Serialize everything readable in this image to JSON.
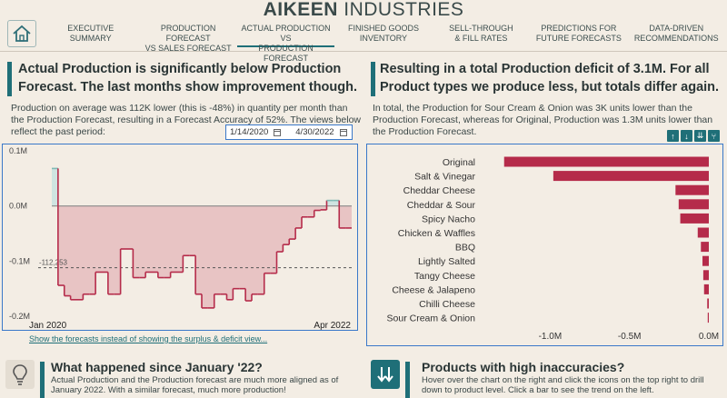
{
  "brand": {
    "bold": "AIKEEN",
    "rest": " INDUSTRIES"
  },
  "nav": [
    {
      "line1": "Executive",
      "line2": "Summary"
    },
    {
      "line1": "Production Forecast",
      "line2": "vs Sales Forecast"
    },
    {
      "line1": "Actual Production vs",
      "line2": "Production Forecast"
    },
    {
      "line1": "Finished Goods",
      "line2": "Inventory"
    },
    {
      "line1": "Sell-Through",
      "line2": "& Fill Rates"
    },
    {
      "line1": "Predictions for",
      "line2": "Future Forecasts"
    },
    {
      "line1": "Data-Driven",
      "line2": "Recommendations"
    }
  ],
  "left": {
    "title": "Actual Production is significantly below Production Forecast. The last months show improvement though.",
    "desc": "Production on average was 112K lower (this is -48%) in quantity per month than the Production Forecast, resulting in a Forecast Accuracy of 52%. The views below reflect the past period:",
    "date_start": "1/14/2020",
    "date_end": "4/30/2022",
    "link": "Show the forecasts instead of showing the surplus & deficit view..."
  },
  "right": {
    "title": "Resulting in a total Production deficit of 3.1M. For all Product types we produce less, but totals differ again.",
    "desc": "In total, the Production for Sour Cream & Onion was 3K units lower than the Production Forecast, whereas for Original, Production was 1.3M units lower than the Production Forecast."
  },
  "bottom_left": {
    "title": "What happened since January '22?",
    "desc": "Actual Production and the Production forecast are much more aligned as of January 2022. With a similar forecast, much more production!"
  },
  "bottom_right": {
    "title": "Products with high inaccuracies?",
    "desc": "Hover over the chart on the right and click the icons on the top right to drill down to product level. Click a bar to see the trend on the left."
  },
  "chart_data": [
    {
      "type": "area",
      "ylim": [
        -0.2,
        0.1
      ],
      "y_ticks": [
        "0.1M",
        "0.0M",
        "-0.1M",
        "-0.2M"
      ],
      "x_start_label": "Jan 2020",
      "x_end_label": "Apr 2022",
      "average_label": "-112,253",
      "average": -0.112,
      "values": [
        0.068,
        -0.144,
        -0.163,
        -0.17,
        -0.17,
        -0.16,
        -0.16,
        -0.12,
        -0.12,
        -0.16,
        -0.16,
        -0.078,
        -0.078,
        -0.13,
        -0.13,
        -0.12,
        -0.12,
        -0.13,
        -0.13,
        -0.12,
        -0.12,
        -0.09,
        -0.09,
        -0.16,
        -0.185,
        -0.185,
        -0.16,
        -0.16,
        -0.17,
        -0.15,
        -0.15,
        -0.172,
        -0.16,
        -0.16,
        -0.122,
        -0.122,
        -0.083,
        -0.07,
        -0.06,
        -0.04,
        -0.02,
        -0.02,
        -0.008,
        -0.007,
        0.01,
        0.01,
        -0.04,
        -0.04
      ],
      "surplus_color": "#7fb9b4",
      "deficit_color": "#b52b4a",
      "deficit_fill": "#e8c4c4"
    },
    {
      "type": "bar",
      "orientation": "horizontal",
      "categories": [
        "Original",
        "Salt & Vinegar",
        "Cheddar Cheese",
        "Cheddar & Sour",
        "Spicy Nacho",
        "Chicken & Waffles",
        "BBQ",
        "Lightly Salted",
        "Tangy Cheese",
        "Cheese & Jalapeno",
        "Chilli Cheese",
        "Sour Cream & Onion"
      ],
      "values": [
        -1.29,
        -0.98,
        -0.21,
        -0.19,
        -0.18,
        -0.07,
        -0.05,
        -0.04,
        -0.035,
        -0.03,
        -0.01,
        -0.003
      ],
      "xlim": [
        -1.3,
        0
      ],
      "x_ticks": [
        "-1.0M",
        "-0.5M",
        "0.0M"
      ],
      "bar_color": "#b52b4a"
    }
  ]
}
